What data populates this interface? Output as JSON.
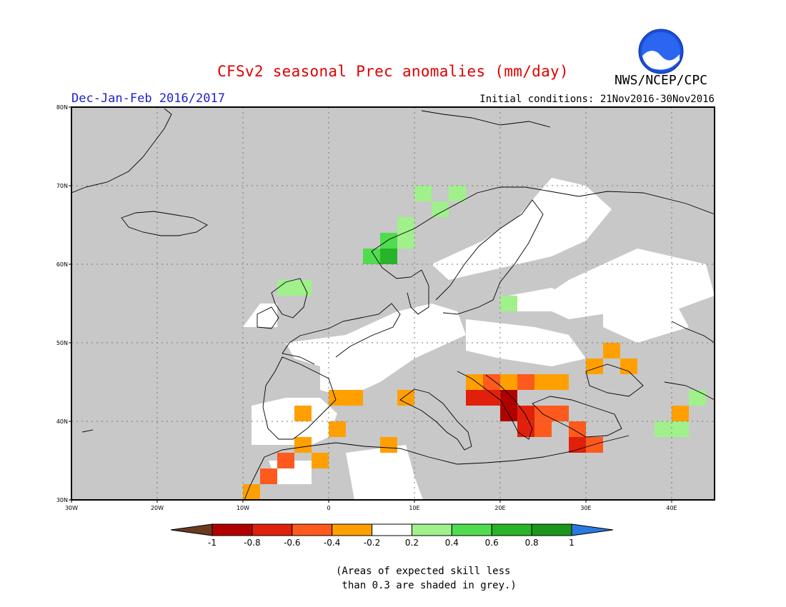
{
  "header": {
    "title": "CFSv2 seasonal Prec anomalies (mm/day)",
    "agency": "NWS/NCEP/CPC",
    "season": "Dec-Jan-Feb 2016/2017",
    "initial_conditions": "Initial conditions: 21Nov2016-30Nov2016"
  },
  "map": {
    "lon_range": [
      -30,
      45
    ],
    "lat_range": [
      30,
      80
    ],
    "lon_ticks": [
      {
        "value": -30,
        "label": "30W"
      },
      {
        "value": -20,
        "label": "20W"
      },
      {
        "value": -10,
        "label": "10W"
      },
      {
        "value": 0,
        "label": "0"
      },
      {
        "value": 10,
        "label": "10E"
      },
      {
        "value": 20,
        "label": "20E"
      },
      {
        "value": 30,
        "label": "30E"
      },
      {
        "value": 40,
        "label": "40E"
      }
    ],
    "lat_ticks": [
      {
        "value": 30,
        "label": "30N"
      },
      {
        "value": 40,
        "label": "40N"
      },
      {
        "value": 50,
        "label": "50N"
      },
      {
        "value": 60,
        "label": "60N"
      },
      {
        "value": 70,
        "label": "70N"
      },
      {
        "value": 80,
        "label": "80N"
      }
    ],
    "grey_color": "#c8c8c8",
    "white_regions": [
      [
        [
          -5,
          50
        ],
        [
          2,
          51
        ],
        [
          8,
          54
        ],
        [
          12,
          55
        ],
        [
          15,
          54
        ],
        [
          16,
          51
        ],
        [
          10,
          48
        ],
        [
          6,
          45
        ],
        [
          2,
          43
        ],
        [
          -1,
          44
        ],
        [
          -1,
          47
        ],
        [
          -4,
          48
        ]
      ],
      [
        [
          -9,
          42
        ],
        [
          -5,
          43
        ],
        [
          -1,
          43
        ],
        [
          1,
          41
        ],
        [
          0,
          38
        ],
        [
          -2,
          37
        ],
        [
          -6,
          37
        ],
        [
          -9,
          37
        ]
      ],
      [
        [
          12,
          60
        ],
        [
          18,
          63
        ],
        [
          22,
          66
        ],
        [
          26,
          71
        ],
        [
          30,
          70
        ],
        [
          33,
          67
        ],
        [
          30,
          63
        ],
        [
          26,
          61
        ],
        [
          22,
          60
        ],
        [
          18,
          59
        ],
        [
          14,
          58
        ]
      ],
      [
        [
          21,
          56
        ],
        [
          26,
          57
        ],
        [
          28,
          56
        ],
        [
          27,
          54
        ],
        [
          24,
          54
        ],
        [
          21,
          54
        ]
      ],
      [
        [
          16,
          53
        ],
        [
          24,
          52
        ],
        [
          28,
          51
        ],
        [
          30,
          48
        ],
        [
          26,
          47
        ],
        [
          20,
          48
        ],
        [
          16,
          49
        ]
      ],
      [
        [
          32,
          56
        ],
        [
          40,
          56
        ],
        [
          42,
          52
        ],
        [
          36,
          50
        ],
        [
          32,
          52
        ]
      ],
      [
        [
          2,
          36
        ],
        [
          9,
          37
        ],
        [
          10,
          33
        ],
        [
          11,
          30
        ],
        [
          3,
          30
        ]
      ],
      [
        [
          -7,
          35
        ],
        [
          -2,
          35
        ],
        [
          -2,
          32
        ],
        [
          -6,
          32
        ]
      ],
      [
        [
          24,
          55
        ],
        [
          28,
          58
        ],
        [
          32,
          60
        ],
        [
          36,
          62
        ],
        [
          40,
          61
        ],
        [
          44,
          60
        ],
        [
          45,
          56
        ],
        [
          40,
          54
        ],
        [
          34,
          54
        ],
        [
          28,
          53
        ]
      ],
      [
        [
          -8,
          55
        ],
        [
          -6,
          55
        ],
        [
          -6,
          52
        ],
        [
          -10,
          52
        ]
      ]
    ],
    "anomaly_cells": [
      {
        "lon": 10,
        "lat": 68,
        "value": 0.3
      },
      {
        "lon": 12,
        "lat": 66,
        "value": 0.3
      },
      {
        "lon": 8,
        "lat": 64,
        "value": 0.3
      },
      {
        "lon": 14,
        "lat": 68,
        "value": 0.3
      },
      {
        "lon": 6,
        "lat": 62,
        "value": 0.5
      },
      {
        "lon": 8,
        "lat": 62,
        "value": 0.3
      },
      {
        "lon": 6,
        "lat": 60,
        "value": 0.7
      },
      {
        "lon": 4,
        "lat": 60,
        "value": 0.5
      },
      {
        "lon": -6,
        "lat": 56,
        "value": 0.3
      },
      {
        "lon": -4,
        "lat": 56,
        "value": 0.3
      },
      {
        "lon": 20,
        "lat": 54,
        "value": 0.3
      },
      {
        "lon": 34,
        "lat": 46,
        "value": -0.3
      },
      {
        "lon": 32,
        "lat": 48,
        "value": -0.3
      },
      {
        "lon": 30,
        "lat": 46,
        "value": -0.3
      },
      {
        "lon": 16,
        "lat": 44,
        "value": -0.3
      },
      {
        "lon": 18,
        "lat": 44,
        "value": -0.5
      },
      {
        "lon": 20,
        "lat": 44,
        "value": -0.3
      },
      {
        "lon": 22,
        "lat": 44,
        "value": -0.5
      },
      {
        "lon": 24,
        "lat": 44,
        "value": -0.3
      },
      {
        "lon": 26,
        "lat": 44,
        "value": -0.3
      },
      {
        "lon": 18,
        "lat": 42,
        "value": -0.7
      },
      {
        "lon": 20,
        "lat": 42,
        "value": -0.9
      },
      {
        "lon": 16,
        "lat": 42,
        "value": -0.7
      },
      {
        "lon": 20,
        "lat": 40,
        "value": -0.9
      },
      {
        "lon": 22,
        "lat": 40,
        "value": -0.7
      },
      {
        "lon": 24,
        "lat": 40,
        "value": -0.5
      },
      {
        "lon": 26,
        "lat": 40,
        "value": -0.5
      },
      {
        "lon": 22,
        "lat": 38,
        "value": -0.7
      },
      {
        "lon": 24,
        "lat": 38,
        "value": -0.5
      },
      {
        "lon": 28,
        "lat": 38,
        "value": -0.5
      },
      {
        "lon": 28,
        "lat": 36,
        "value": -0.7
      },
      {
        "lon": 30,
        "lat": 36,
        "value": -0.5
      },
      {
        "lon": 0,
        "lat": 42,
        "value": -0.3
      },
      {
        "lon": 2,
        "lat": 42,
        "value": -0.3
      },
      {
        "lon": 8,
        "lat": 42,
        "value": -0.3
      },
      {
        "lon": -4,
        "lat": 40,
        "value": -0.3
      },
      {
        "lon": 0,
        "lat": 38,
        "value": -0.3
      },
      {
        "lon": -4,
        "lat": 36,
        "value": -0.3
      },
      {
        "lon": -6,
        "lat": 34,
        "value": -0.5
      },
      {
        "lon": -8,
        "lat": 32,
        "value": -0.5
      },
      {
        "lon": -10,
        "lat": 30,
        "value": -0.3
      },
      {
        "lon": -2,
        "lat": 34,
        "value": -0.3
      },
      {
        "lon": 6,
        "lat": 36,
        "value": -0.3
      },
      {
        "lon": 42,
        "lat": 42,
        "value": 0.3
      },
      {
        "lon": 38,
        "lat": 38,
        "value": 0.3
      },
      {
        "lon": 40,
        "lat": 38,
        "value": 0.3
      },
      {
        "lon": 40,
        "lat": 40,
        "value": -0.3
      }
    ]
  },
  "colorbar": {
    "thresholds": [
      "-1",
      "-0.8",
      "-0.6",
      "-0.4",
      "-0.2",
      "0.2",
      "0.4",
      "0.6",
      "0.8",
      "1"
    ],
    "colors": [
      "#6b3a1f",
      "#b00000",
      "#e0200a",
      "#ff5a1e",
      "#ffa000",
      "#ffffff",
      "#a0f08c",
      "#50dc50",
      "#28b428",
      "#1a961a",
      "#2a7ae0"
    ]
  },
  "footnote": {
    "line1": "(Areas of expected skill less",
    "line2": " than 0.3 are shaded in grey.)"
  }
}
